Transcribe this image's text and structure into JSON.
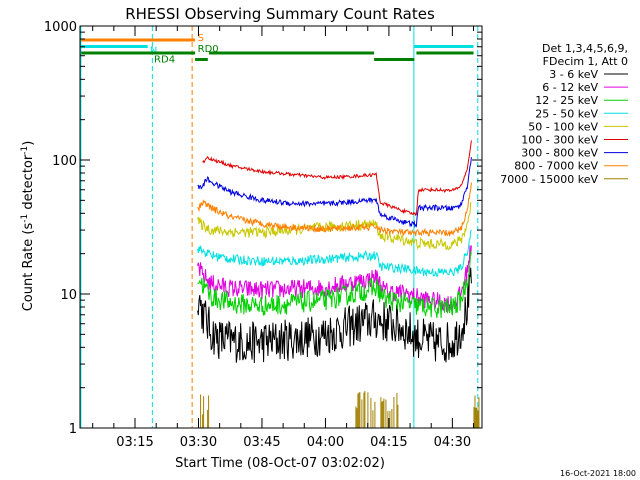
{
  "chart_data": {
    "type": "line",
    "title": "RHESSI Observing Summary Count Rates",
    "xlabel": "Start Time (08-Oct-07 03:02:02)",
    "ylabel_main": "Count Rate (s",
    "ylabel_sup1": "-1",
    "ylabel_mid": " detector",
    "ylabel_sup2": "-1",
    "ylabel_end": ")",
    "yscale": "log",
    "ylim": [
      1,
      1000
    ],
    "xlim_minutes": [
      0,
      95
    ],
    "xticks": [
      {
        "label": "03:15",
        "min": 13
      },
      {
        "label": "03:30",
        "min": 28
      },
      {
        "label": "03:45",
        "min": 43
      },
      {
        "label": "04:00",
        "min": 58
      },
      {
        "label": "04:15",
        "min": 73
      },
      {
        "label": "04:30",
        "min": 88
      }
    ],
    "yticks": [
      {
        "label": "1",
        "v": 1
      },
      {
        "label": "10",
        "v": 10
      },
      {
        "label": "100",
        "v": 100
      },
      {
        "label": "1000",
        "v": 1000
      }
    ],
    "legend_header": [
      "Det 1,3,4,5,6,9,",
      "FDecim 1, Att 0"
    ],
    "series": [
      {
        "name": "3 - 6 keV",
        "color": "#000000",
        "noise": 0.16,
        "points": [
          [
            27.8,
            10.5
          ],
          [
            28.8,
            7.5
          ],
          [
            31,
            5.2
          ],
          [
            33,
            4.6
          ],
          [
            40,
            4.3
          ],
          [
            50,
            4.6
          ],
          [
            58,
            5.0
          ],
          [
            63,
            5.6
          ],
          [
            68,
            6.3
          ],
          [
            70,
            6.5
          ],
          [
            75,
            5.8
          ],
          [
            78,
            5.2
          ],
          [
            79,
            4.8
          ],
          [
            84,
            4.3
          ],
          [
            88,
            4.4
          ],
          [
            90,
            5.5
          ],
          [
            91.5,
            8
          ],
          [
            92.5,
            12
          ]
        ]
      },
      {
        "name": "6 - 12 keV",
        "color": "#e000e0",
        "noise": 0.07,
        "points": [
          [
            27.8,
            16.5
          ],
          [
            28.8,
            14
          ],
          [
            31,
            12
          ],
          [
            36,
            11
          ],
          [
            43,
            10.7
          ],
          [
            50,
            10.9
          ],
          [
            58,
            11.2
          ],
          [
            63,
            12
          ],
          [
            68,
            12.8
          ],
          [
            70,
            13.5
          ],
          [
            72,
            10.5
          ],
          [
            78,
            10
          ],
          [
            79,
            9.6
          ],
          [
            84,
            8.8
          ],
          [
            88,
            8.5
          ],
          [
            90,
            10
          ],
          [
            91.5,
            15
          ],
          [
            92.5,
            23
          ]
        ]
      },
      {
        "name": "12 - 25 keV",
        "color": "#00d000",
        "noise": 0.08,
        "points": [
          [
            27.8,
            13.5
          ],
          [
            28.8,
            12
          ],
          [
            31,
            9.5
          ],
          [
            36,
            8.5
          ],
          [
            43,
            8.2
          ],
          [
            50,
            8.5
          ],
          [
            58,
            9.0
          ],
          [
            63,
            9.8
          ],
          [
            68,
            10.8
          ],
          [
            70,
            11.2
          ],
          [
            72,
            9.2
          ],
          [
            78,
            8.4
          ],
          [
            79,
            8.2
          ],
          [
            84,
            7.8
          ],
          [
            88,
            7.9
          ],
          [
            90,
            9
          ],
          [
            91.5,
            13
          ],
          [
            92.5,
            20
          ]
        ]
      },
      {
        "name": "25 - 50 keV",
        "color": "#00e0e0",
        "noise": 0.035,
        "points": [
          [
            27.8,
            22
          ],
          [
            28.8,
            21
          ],
          [
            31,
            19.5
          ],
          [
            36,
            18.2
          ],
          [
            43,
            17.6
          ],
          [
            50,
            17.6
          ],
          [
            58,
            18.2
          ],
          [
            63,
            18.7
          ],
          [
            68,
            19.2
          ],
          [
            70,
            19.5
          ],
          [
            71,
            16
          ],
          [
            78,
            15.3
          ],
          [
            79,
            14.9
          ],
          [
            84,
            14.5
          ],
          [
            88,
            14.5
          ],
          [
            90,
            15.5
          ],
          [
            91.5,
            21
          ],
          [
            92.5,
            30
          ]
        ]
      },
      {
        "name": "50 - 100 keV",
        "color": "#c8c800",
        "noise": 0.04,
        "points": [
          [
            27.8,
            35
          ],
          [
            28.8,
            33
          ],
          [
            31,
            30
          ],
          [
            36,
            29
          ],
          [
            43,
            28.8
          ],
          [
            50,
            30
          ],
          [
            58,
            31.5
          ],
          [
            63,
            32.5
          ],
          [
            68,
            33
          ],
          [
            70,
            33
          ],
          [
            71,
            27
          ],
          [
            78,
            25
          ],
          [
            79,
            24
          ],
          [
            84,
            23.5
          ],
          [
            88,
            23.5
          ],
          [
            90,
            25
          ],
          [
            91.5,
            33
          ],
          [
            92.5,
            48
          ]
        ]
      },
      {
        "name": "100 - 300 keV",
        "color": "#e00000",
        "noise": 0.012,
        "points": [
          [
            29,
            95
          ],
          [
            30,
            105
          ],
          [
            31.5,
            100
          ],
          [
            36,
            90
          ],
          [
            43,
            82
          ],
          [
            50,
            78
          ],
          [
            58,
            74
          ],
          [
            63,
            75
          ],
          [
            68,
            77
          ],
          [
            70,
            78
          ],
          [
            71,
            48
          ],
          [
            78,
            40
          ],
          [
            79.5,
            39.5
          ],
          [
            80,
            60
          ],
          [
            84,
            60
          ],
          [
            88,
            59
          ],
          [
            90,
            64
          ],
          [
            91.5,
            85
          ],
          [
            92.5,
            140
          ]
        ]
      },
      {
        "name": "300 - 800 keV",
        "color": "#0000e0",
        "noise": 0.02,
        "points": [
          [
            27.8,
            62
          ],
          [
            28.8,
            63
          ],
          [
            30,
            72
          ],
          [
            31.5,
            67
          ],
          [
            36,
            57
          ],
          [
            43,
            50
          ],
          [
            50,
            47.5
          ],
          [
            58,
            47
          ],
          [
            63,
            48.5
          ],
          [
            68,
            50
          ],
          [
            70,
            50.5
          ],
          [
            71,
            39
          ],
          [
            78,
            33.5
          ],
          [
            79.5,
            33
          ],
          [
            80,
            44
          ],
          [
            84,
            44
          ],
          [
            88,
            43.5
          ],
          [
            90,
            46
          ],
          [
            91.5,
            64
          ],
          [
            92.5,
            105
          ]
        ]
      },
      {
        "name": "800 - 7000 keV",
        "color": "#ff8000",
        "noise": 0.025,
        "points": [
          [
            27.8,
            42
          ],
          [
            28.8,
            48
          ],
          [
            30,
            46
          ],
          [
            31.5,
            43
          ],
          [
            36,
            37
          ],
          [
            43,
            33.5
          ],
          [
            50,
            31.5
          ],
          [
            58,
            30.5
          ],
          [
            63,
            31
          ],
          [
            68,
            31.5
          ],
          [
            70,
            32
          ],
          [
            71,
            30
          ],
          [
            78,
            28.5
          ],
          [
            79.5,
            28
          ],
          [
            80,
            29
          ],
          [
            84,
            28.5
          ],
          [
            88,
            28.5
          ],
          [
            90,
            30.5
          ],
          [
            91.5,
            42
          ],
          [
            92.5,
            68
          ]
        ]
      },
      {
        "name": "7000 - 15000 keV",
        "color": "#a08000",
        "noise": 0,
        "points": []
      }
    ],
    "attenuator_bars": [
      {
        "label": "S",
        "color": "#ff8000",
        "y": 1,
        "segments": [
          [
            0.3,
            27.2
          ]
        ]
      },
      {
        "label": "N",
        "color": "#00e0e0",
        "y": 2,
        "segments": [
          [
            0.3,
            16
          ],
          [
            79,
            93
          ]
        ]
      },
      {
        "label": "RD0",
        "color": "#008000",
        "y": 3,
        "segments": [
          [
            0.3,
            27.2
          ],
          [
            30.5,
            69.5
          ],
          [
            79.5,
            93
          ]
        ]
      },
      {
        "label": "RD4",
        "color": "#008000",
        "y": 4,
        "segments": [
          [
            27.2,
            30.2
          ],
          [
            69.5,
            79
          ]
        ]
      }
    ],
    "vertical_markers": [
      {
        "min": 0.2,
        "color": "#00e0e0",
        "style": "solid"
      },
      {
        "min": 17.1,
        "color": "#00e0e0",
        "style": "dashed"
      },
      {
        "min": 26.5,
        "color": "#ff8000",
        "style": "dashed"
      },
      {
        "min": 78.9,
        "color": "#00e0e0",
        "style": "solid"
      },
      {
        "min": 94.0,
        "color": "#00e0e0",
        "style": "dashed"
      }
    ],
    "attenuator_spikes": {
      "color": "#a08000",
      "regions": [
        [
          28.5,
          30.8,
          0.5
        ],
        [
          65.2,
          76.6,
          0.35
        ],
        [
          93.1,
          94.3,
          0.8
        ]
      ]
    },
    "timestamp": "16-Oct-2021 18:00"
  }
}
